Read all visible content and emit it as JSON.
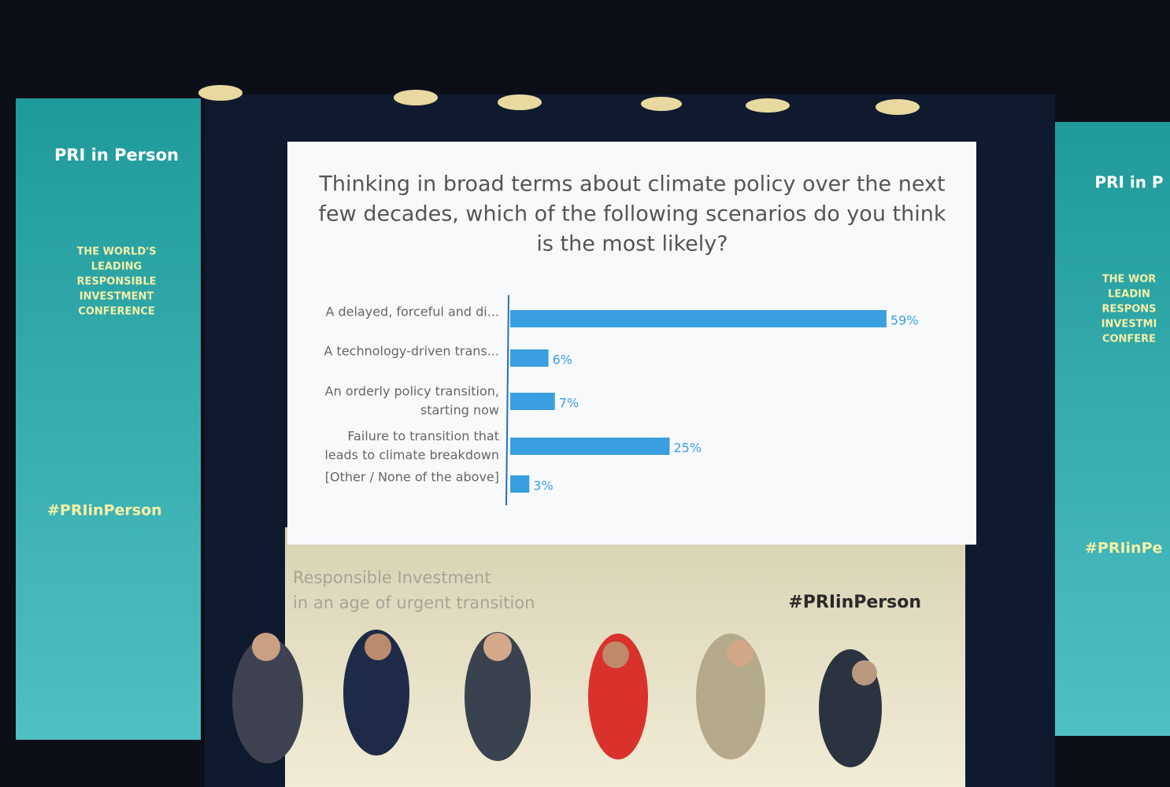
{
  "chart_data": {
    "type": "hbar",
    "title": [
      "Thinking in broad terms about climate policy over the next",
      "few decades, which of the following scenarios do you think",
      "is the most likely?"
    ],
    "categories": [
      [
        "A delayed, forceful and di..."
      ],
      [
        "A technology-driven trans..."
      ],
      [
        "An orderly policy transition,",
        "starting now"
      ],
      [
        "Failure to transition that",
        "leads to climate breakdown"
      ],
      [
        "[Other / None of the above]"
      ]
    ],
    "values": [
      59,
      6,
      7,
      25,
      3
    ],
    "value_labels": [
      "59%",
      "6%",
      "7%",
      "25%",
      "3%"
    ],
    "color": "#3a9fe0"
  },
  "left_banner": {
    "logo": "PRI in Person",
    "tagline": [
      "THE WORLD'S",
      "LEADING",
      "RESPONSIBLE",
      "INVESTMENT",
      "CONFERENCE"
    ],
    "hashtag": "#PRIinPerson"
  },
  "right_banner": {
    "logo": "PRI in P",
    "tagline": [
      "THE WOR",
      "LEADIN",
      "RESPONS",
      "INVESTMI",
      "CONFERE"
    ],
    "hashtag": "#PRIinPe"
  },
  "backdrop": {
    "slogan": [
      "Responsible Investment",
      "in an age of urgent transition"
    ],
    "hashtag": "#PRIinPerson"
  }
}
